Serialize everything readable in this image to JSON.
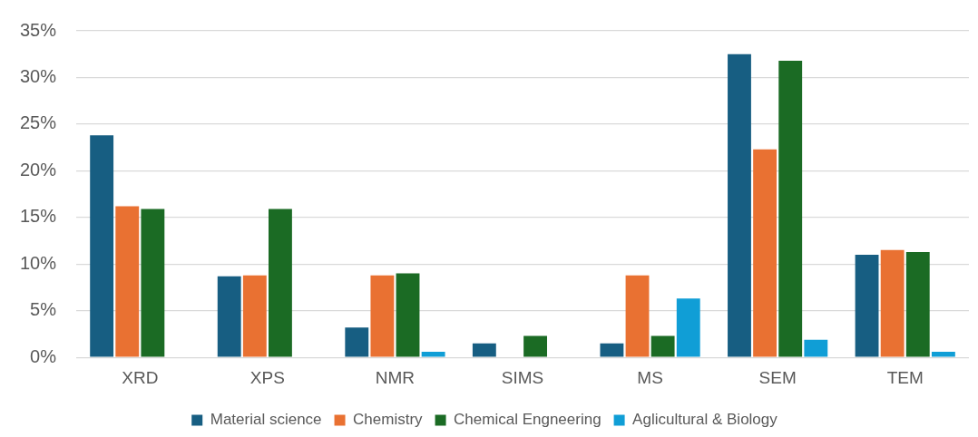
{
  "chart_data": {
    "type": "bar",
    "categories": [
      "XRD",
      "XPS",
      "NMR",
      "SIMS",
      "MS",
      "SEM",
      "TEM"
    ],
    "series": [
      {
        "name": "Material science",
        "color": "#175e82",
        "values": [
          23.8,
          8.7,
          3.2,
          1.5,
          1.5,
          32.5,
          11.0
        ]
      },
      {
        "name": "Chemistry",
        "color": "#e97132",
        "values": [
          16.2,
          8.8,
          8.8,
          null,
          8.8,
          22.3,
          11.5
        ]
      },
      {
        "name": "Chemical Engneering",
        "color": "#1b6b24",
        "values": [
          15.9,
          15.9,
          9.0,
          2.3,
          2.3,
          31.8,
          11.3
        ]
      },
      {
        "name": "Aglicultural & Biology",
        "color": "#109ed6",
        "values": [
          null,
          null,
          0.6,
          null,
          6.3,
          1.9,
          0.6
        ]
      }
    ],
    "ylim": [
      0,
      35
    ],
    "yticks": [
      {
        "value": 0,
        "label": "0%"
      },
      {
        "value": 5,
        "label": "5%"
      },
      {
        "value": 10,
        "label": "10%"
      },
      {
        "value": 15,
        "label": "15%"
      },
      {
        "value": 20,
        "label": "20%"
      },
      {
        "value": 25,
        "label": "25%"
      },
      {
        "value": 30,
        "label": "30%"
      },
      {
        "value": 35,
        "label": "35%"
      }
    ],
    "grid": "y",
    "legend": "bottom"
  }
}
